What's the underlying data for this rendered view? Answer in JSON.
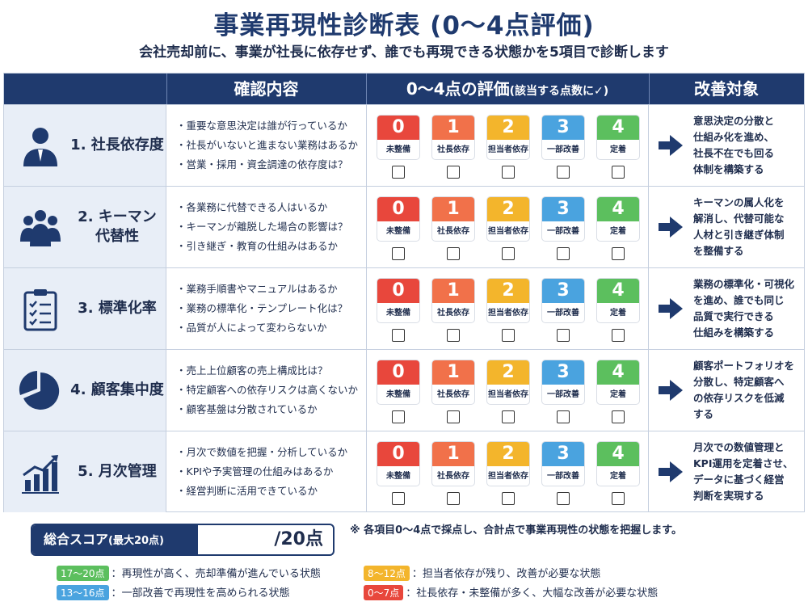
{
  "title": "事業再現性診断表 (0〜4点評価)",
  "subtitle": "会社売却前に、事業が社長に依存せず、誰でも再現できる状態かを5項目で診断します",
  "header": {
    "check": "確認内容",
    "score_main": "0〜4点の評価",
    "score_sub": "(該当する点数に✓)",
    "improve": "改善対象"
  },
  "scale": [
    {
      "num": "0",
      "label": "未整備",
      "color": "#e8473c"
    },
    {
      "num": "1",
      "label": "社長依存",
      "color": "#f1714a"
    },
    {
      "num": "2",
      "label": "担当者依存",
      "color": "#f3b52c"
    },
    {
      "num": "3",
      "label": "一部改善",
      "color": "#4aa3df"
    },
    {
      "num": "4",
      "label": "定着",
      "color": "#5cbf5e"
    }
  ],
  "rows": [
    {
      "icon": "person-icon",
      "label": "1. 社長依存度",
      "checks": [
        "・重要な意思決定は誰が行っているか",
        "・社長がいないと進まない業務はあるか",
        "・営業・採用・資金調達の依存度は？"
      ],
      "improve": "意思決定の分散と\n仕組み化を進め、\n社長不在でも回る\n体制を構築する"
    },
    {
      "icon": "team-icon",
      "label": "2. キーマン\n代替性",
      "checks": [
        "・各業務に代替できる人はいるか",
        "・キーマンが離脱した場合の影響は？",
        "・引き継ぎ・教育の仕組みはあるか"
      ],
      "improve": "キーマンの属人化を\n解消し、代替可能な\n人材と引き継ぎ体制\nを整備する"
    },
    {
      "icon": "checklist-icon",
      "label": "3. 標準化率",
      "checks": [
        "・業務手順書やマニュアルはあるか",
        "・業務の標準化・テンプレート化は？",
        "・品質が人によって変わらないか"
      ],
      "improve": "業務の標準化・可視化\nを進め、誰でも同じ\n品質で実行できる\n仕組みを構築する"
    },
    {
      "icon": "pie-chart-icon",
      "label": "4. 顧客集中度",
      "checks": [
        "・売上上位顧客の売上構成比は？",
        "・特定顧客への依存リスクは高くないか",
        "・顧客基盤は分散されているか"
      ],
      "improve": "顧客ポートフォリオを\n分散し、特定顧客へ\nの依存リスクを低減\nする"
    },
    {
      "icon": "bar-chart-icon",
      "label": "5. 月次管理",
      "checks": [
        "・月次で数値を把握・分析しているか",
        "・KPIや予実管理の仕組みはあるか",
        "・経営判断に活用できているか"
      ],
      "improve": "月次での数値管理と\nKPI運用を定着させ、\nデータに基づく経営\n判断を実現する"
    }
  ],
  "total": {
    "label": "総合スコア",
    "label_sub": "(最大20点)",
    "value": "/20点"
  },
  "note": "※ 各項目0〜4点で採点し、合計点で事業再現性の状態を把握します。",
  "legend": [
    {
      "range": "17〜20点",
      "text": "：再現性が高く、売却準備が進んでいる状態",
      "color": "#5cbf5e"
    },
    {
      "range": "8〜12点",
      "text": "：担当者依存が残り、改善が必要な状態",
      "color": "#f3b52c"
    },
    {
      "range": "13〜16点",
      "text": "：一部改善で再現性を高められる状態",
      "color": "#4aa3df"
    },
    {
      "range": "0〜7点",
      "text": "：社長依存・未整備が多く、大幅な改善が必要な状態",
      "color": "#e8473c"
    }
  ]
}
